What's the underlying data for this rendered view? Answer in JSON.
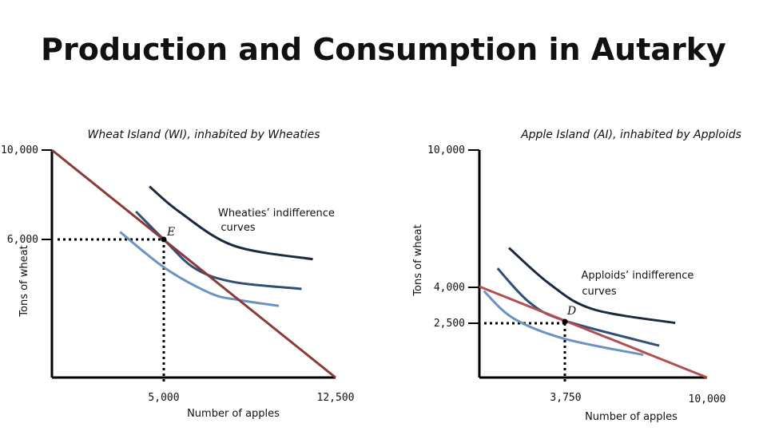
{
  "title": "Production and Consumption in Autarky",
  "chart_data": [
    {
      "type": "line",
      "title": "Wheat Island (WI), inhabited by Wheaties",
      "xlabel": "Number of apples",
      "ylabel": "Tons of wheat",
      "xlim": [
        0,
        12500
      ],
      "ylim": [
        0,
        10000
      ],
      "x_ticks": [
        "5,000",
        "12,500"
      ],
      "y_ticks": [
        "10,000",
        "6,000"
      ],
      "ppf": {
        "color": "#8b3a3a",
        "points": [
          [
            0,
            10000
          ],
          [
            12500,
            0
          ]
        ]
      },
      "indifference_curves": [
        {
          "color": "#6a93c4",
          "points": [
            [
              3000,
              6400
            ],
            [
              5000,
              4800
            ],
            [
              7000,
              3700
            ],
            [
              8300,
              3400
            ],
            [
              10000,
              3150
            ]
          ]
        },
        {
          "color": "#2f4f75",
          "points": [
            [
              3700,
              7300
            ],
            [
              5000,
              6000
            ],
            [
              6300,
              4800
            ],
            [
              8000,
              4200
            ],
            [
              11000,
              3900
            ]
          ]
        },
        {
          "color": "#1c2a40",
          "points": [
            [
              4300,
              8400
            ],
            [
              5600,
              7300
            ],
            [
              8000,
              5800
            ],
            [
              11500,
              5200
            ]
          ]
        }
      ],
      "point": {
        "label": "E",
        "x": 5000,
        "y": 6000
      },
      "annotation": "Wheaties’ indifference curves"
    },
    {
      "type": "line",
      "title": "Apple Island (AI), inhabited by Apploids",
      "xlabel": "Number of apples",
      "ylabel": "Tons of wheat",
      "xlim": [
        0,
        10000
      ],
      "ylim": [
        0,
        10000
      ],
      "x_ticks": [
        "3,750",
        "10,000"
      ],
      "y_ticks": [
        "10,000",
        "4,000",
        "2,500"
      ],
      "ppf": {
        "color": "#b05050",
        "points": [
          [
            0,
            4000
          ],
          [
            10000,
            0
          ]
        ]
      },
      "indifference_curves": [
        {
          "color": "#6a93c4",
          "points": [
            [
              200,
              3800
            ],
            [
              1500,
              2600
            ],
            [
              3750,
              1700
            ],
            [
              7200,
              1000
            ]
          ]
        },
        {
          "color": "#2f4f75",
          "points": [
            [
              800,
              4800
            ],
            [
              2200,
              3300
            ],
            [
              3750,
              2500
            ],
            [
              7900,
              1400
            ]
          ]
        },
        {
          "color": "#1c2a40",
          "points": [
            [
              1300,
              5700
            ],
            [
              3100,
              4100
            ],
            [
              5000,
              3000
            ],
            [
              8600,
              2400
            ]
          ]
        }
      ],
      "point": {
        "label": "D",
        "x": 3750,
        "y": 2500
      },
      "annotation": "Apploids’ indifference curves"
    }
  ]
}
